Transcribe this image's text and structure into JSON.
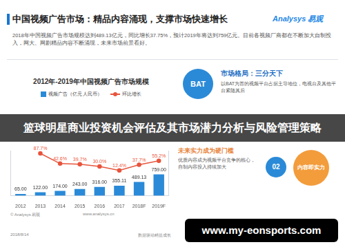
{
  "header": {
    "title": "中国视频广告市场：精品内容涌现，支撑市场快速增长",
    "logo": "Analysys 易观",
    "subtitle": "2018年中国视频广告市场规模达到489.13亿元，同比增长37.75%，预计2019年将达到759亿元。目前各视频厂商都在不断加大自制投入，网大、网剧精品内容不断涌现，未来市场前景看好。"
  },
  "chart_data": {
    "type": "bar",
    "title": "2012年-2019年中国视频广告市场规模",
    "categories": [
      "2012",
      "2013",
      "2014",
      "2015",
      "2016",
      "2017",
      "2018F",
      "2019F"
    ],
    "series": [
      {
        "name": "视频广告（亿元 人民币）",
        "color": "#2a8ad8",
        "values": [
          65,
          122,
          174,
          243,
          316,
          355.11,
          489.13,
          759
        ],
        "value_labels": [
          "65.00",
          "122.00",
          "174.00",
          "243.00",
          "316.00",
          "355.11",
          "489.13",
          "759.00"
        ]
      },
      {
        "name": "环比增长",
        "type": "line",
        "axis": "y2",
        "color": "#e8543c",
        "marker": "circle",
        "values": [
          null,
          87.7,
          42.6,
          39.7,
          30.0,
          12.4,
          37.7,
          55.2
        ],
        "value_labels": [
          null,
          "87.7%",
          "42.6%",
          "39.7%",
          "30.0%",
          "12.4%",
          "37.7%",
          "55.2%"
        ]
      }
    ],
    "ylim": [
      0,
      1600
    ],
    "y2lim": [
      -100,
      100
    ],
    "tick_labels": "x",
    "grid": false,
    "data_labels": true,
    "legend": "top"
  },
  "panel": {
    "section1": {
      "badge": "BAT",
      "heading": "市场格局：三分天下",
      "text": "以BAT为首的视频平台占据主导地位，电视台及其他平台紧随其后"
    },
    "section2": {
      "heading": "未来实力成为硬门槛",
      "text": "优质内容成为视频平台竞争的核心，自制内容投入持续加大",
      "badge": "02",
      "label": "内容即实力"
    }
  },
  "banner": "篮球明星商业投资机会评估及其市场潜力分析与风险管理策略",
  "footer": {
    "source": "© Analysys 易观",
    "url": "www.analysys.cn",
    "date": "2018/8/14",
    "slogan": "数据驱动精益成长"
  },
  "watermark": "www.my-eonsports.com"
}
